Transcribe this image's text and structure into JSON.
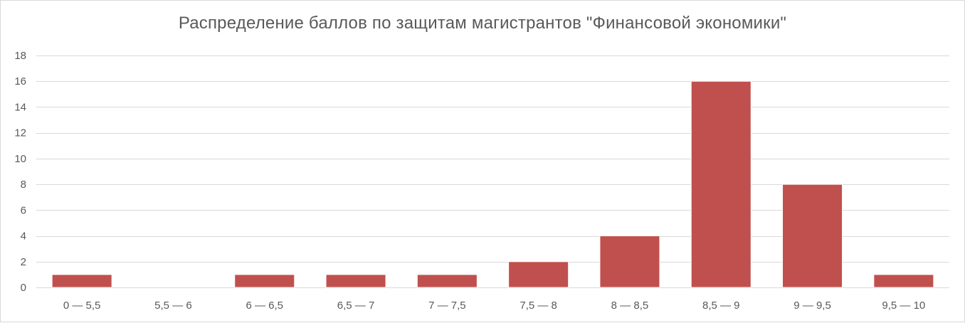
{
  "chart_data": {
    "type": "bar",
    "title": "Распределение баллов по защитам магистрантов \"Финансовой экономики\"",
    "xlabel": "",
    "ylabel": "",
    "categories": [
      "0 — 5,5",
      "5,5 — 6",
      "6 — 6,5",
      "6,5 — 7",
      "7 — 7,5",
      "7,5 — 8",
      "8 — 8,5",
      "8,5 — 9",
      "9 — 9,5",
      "9,5 — 10"
    ],
    "values": [
      1,
      0,
      1,
      1,
      1,
      2,
      4,
      16,
      8,
      1
    ],
    "ylim": [
      0,
      18
    ],
    "yticks": [
      0,
      2,
      4,
      6,
      8,
      10,
      12,
      14,
      16,
      18
    ],
    "grid": true,
    "legend": "none",
    "bar_color": "#c0504d",
    "bar_border_color": "#ffffff"
  }
}
